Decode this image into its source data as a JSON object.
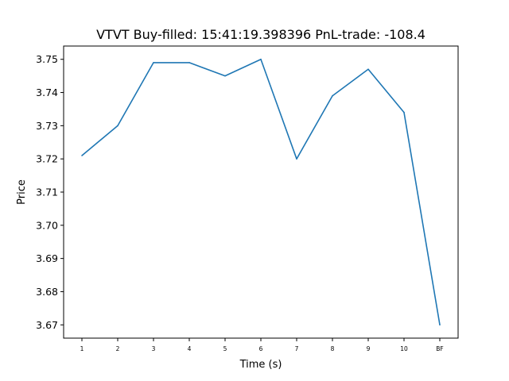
{
  "chart_data": {
    "type": "line",
    "title": "VTVT  Buy-filled:  15:41:19.398396  PnL-trade:  -108.4",
    "xlabel": "Time (s)",
    "ylabel": "Price",
    "categories": [
      "1",
      "2",
      "3",
      "4",
      "5",
      "6",
      "7",
      "8",
      "9",
      "10",
      "BF"
    ],
    "series": [
      {
        "values": [
          3.721,
          3.73,
          3.749,
          3.749,
          3.745,
          3.75,
          3.72,
          3.739,
          3.747,
          3.734,
          3.67
        ],
        "color": "#1f77b4"
      }
    ],
    "yticks": [
      "3.67",
      "3.68",
      "3.69",
      "3.70",
      "3.71",
      "3.72",
      "3.73",
      "3.74",
      "3.75"
    ],
    "ylim": [
      3.666,
      3.754
    ],
    "grid": false,
    "legend": false
  }
}
